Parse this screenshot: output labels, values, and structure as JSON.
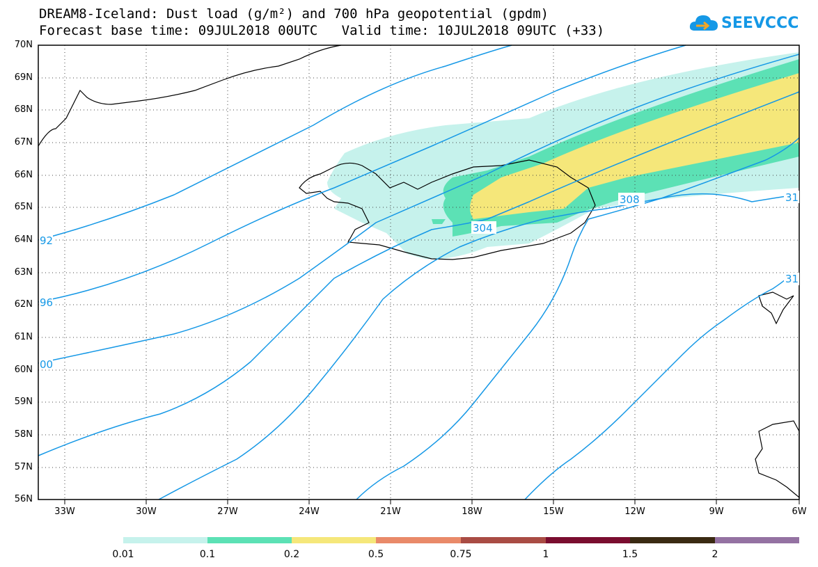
{
  "header": {
    "title_line1": "DREAM8-Iceland: Dust load (g/m²) and 700 hPa geopotential (gpdm)",
    "title_line2": "Forecast base time: 09JUL2018 00UTC   Valid time: 10JUL2018 09UTC (+33)"
  },
  "logo": {
    "text": "SEEVCCC",
    "icon": "cloud-arrow-icon",
    "color": "#1598e6"
  },
  "map": {
    "lat_labels": [
      "70N",
      "69N",
      "68N",
      "67N",
      "66N",
      "65N",
      "64N",
      "63N",
      "62N",
      "61N",
      "60N",
      "59N",
      "58N",
      "57N",
      "56N"
    ],
    "lon_labels": [
      "33W",
      "30W",
      "27W",
      "24W",
      "21W",
      "18W",
      "15W",
      "12W",
      "9W",
      "6W"
    ],
    "contour_labels": [
      "92",
      "96",
      "00",
      "304",
      "308",
      "31",
      "31"
    ],
    "contour_color": "#1598e6"
  },
  "colorbar": {
    "labels": [
      "0.01",
      "0.1",
      "0.2",
      "0.5",
      "0.75",
      "1",
      "1.5",
      "2"
    ],
    "colors": [
      "#c6f2ec",
      "#5ce1b5",
      "#f5e77a",
      "#e98a69",
      "#a94c44",
      "#7a0d2f",
      "#3a2a12",
      "#9472a2"
    ]
  }
}
